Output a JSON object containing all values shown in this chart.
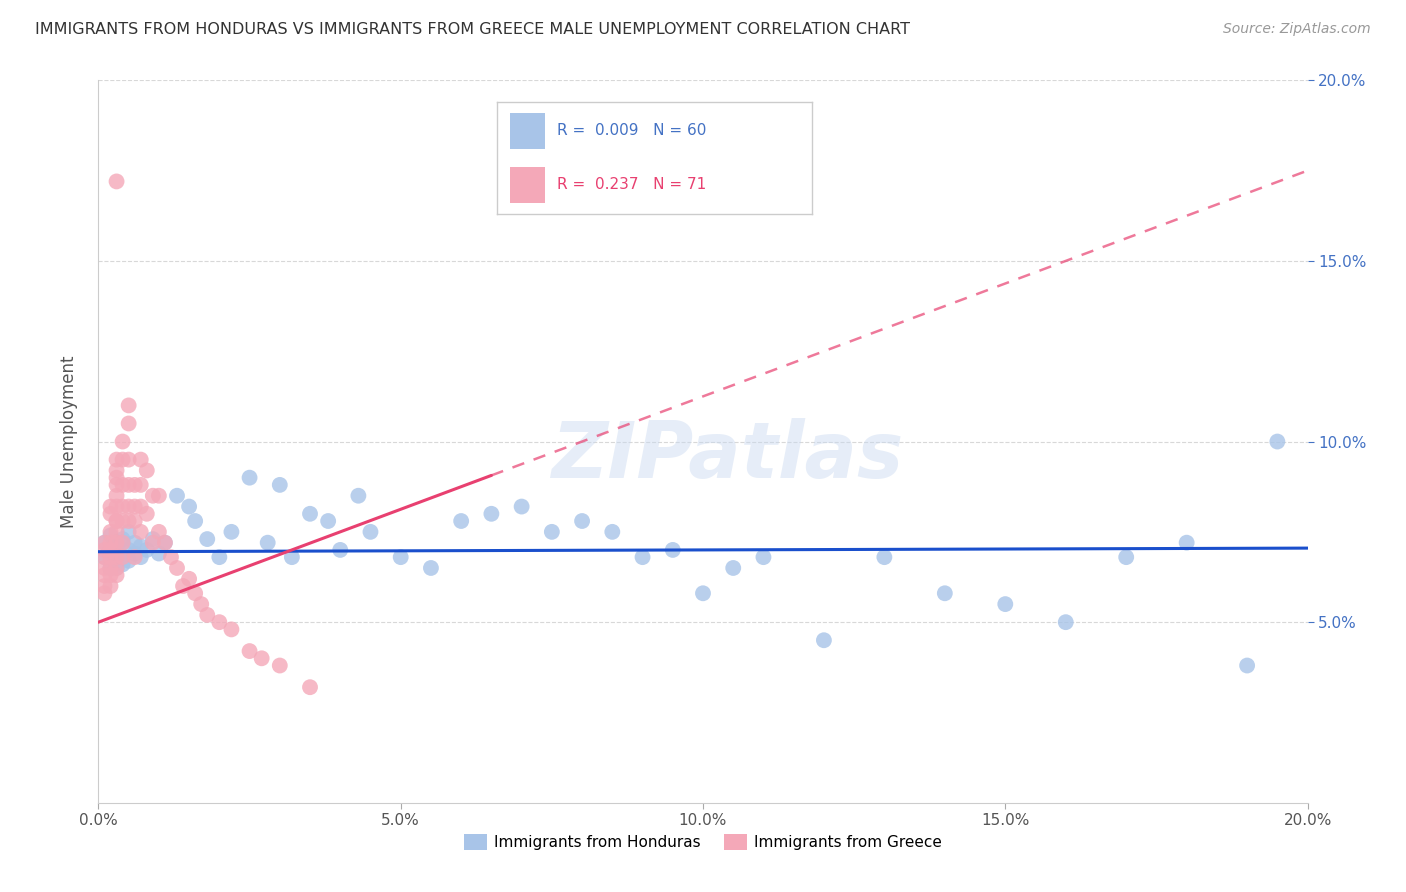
{
  "title": "IMMIGRANTS FROM HONDURAS VS IMMIGRANTS FROM GREECE MALE UNEMPLOYMENT CORRELATION CHART",
  "source": "Source: ZipAtlas.com",
  "ylabel": "Male Unemployment",
  "xlim": [
    0,
    0.2
  ],
  "ylim": [
    0,
    0.2
  ],
  "xticks": [
    0.0,
    0.05,
    0.1,
    0.15,
    0.2
  ],
  "yticks": [
    0.05,
    0.1,
    0.15,
    0.2
  ],
  "xtick_labels": [
    "0.0%",
    "5.0%",
    "10.0%",
    "15.0%",
    "20.0%"
  ],
  "ytick_labels_right": [
    "5.0%",
    "10.0%",
    "15.0%",
    "20.0%"
  ],
  "legend_label1": "Immigrants from Honduras",
  "legend_label2": "Immigrants from Greece",
  "R1": 0.009,
  "N1": 60,
  "R2": 0.237,
  "N2": 71,
  "color_honduras": "#a8c4e8",
  "color_greece": "#f4a8b8",
  "line_color_honduras": "#1a4fcc",
  "line_color_greece": "#e84070",
  "background_color": "#ffffff",
  "watermark": "ZIPatlas",
  "honduras_x": [
    0.001,
    0.001,
    0.002,
    0.002,
    0.002,
    0.003,
    0.003,
    0.003,
    0.003,
    0.004,
    0.004,
    0.004,
    0.005,
    0.005,
    0.005,
    0.006,
    0.006,
    0.007,
    0.007,
    0.008,
    0.009,
    0.01,
    0.011,
    0.013,
    0.015,
    0.016,
    0.018,
    0.02,
    0.022,
    0.025,
    0.028,
    0.03,
    0.032,
    0.035,
    0.038,
    0.04,
    0.043,
    0.045,
    0.05,
    0.055,
    0.06,
    0.065,
    0.07,
    0.075,
    0.08,
    0.085,
    0.09,
    0.095,
    0.1,
    0.105,
    0.11,
    0.12,
    0.13,
    0.14,
    0.15,
    0.16,
    0.17,
    0.18,
    0.19,
    0.195
  ],
  "honduras_y": [
    0.068,
    0.072,
    0.07,
    0.065,
    0.074,
    0.068,
    0.071,
    0.065,
    0.069,
    0.072,
    0.066,
    0.073,
    0.07,
    0.067,
    0.075,
    0.069,
    0.072,
    0.071,
    0.068,
    0.07,
    0.073,
    0.069,
    0.072,
    0.085,
    0.082,
    0.078,
    0.073,
    0.068,
    0.075,
    0.09,
    0.072,
    0.088,
    0.068,
    0.08,
    0.078,
    0.07,
    0.085,
    0.075,
    0.068,
    0.065,
    0.078,
    0.08,
    0.082,
    0.075,
    0.078,
    0.075,
    0.068,
    0.07,
    0.058,
    0.065,
    0.068,
    0.045,
    0.068,
    0.058,
    0.055,
    0.05,
    0.068,
    0.072,
    0.038,
    0.1
  ],
  "greece_x": [
    0.001,
    0.001,
    0.001,
    0.001,
    0.001,
    0.001,
    0.001,
    0.002,
    0.002,
    0.002,
    0.002,
    0.002,
    0.002,
    0.002,
    0.002,
    0.002,
    0.003,
    0.003,
    0.003,
    0.003,
    0.003,
    0.003,
    0.003,
    0.003,
    0.003,
    0.003,
    0.003,
    0.003,
    0.003,
    0.004,
    0.004,
    0.004,
    0.004,
    0.004,
    0.004,
    0.004,
    0.005,
    0.005,
    0.005,
    0.005,
    0.005,
    0.005,
    0.006,
    0.006,
    0.006,
    0.006,
    0.007,
    0.007,
    0.007,
    0.007,
    0.008,
    0.008,
    0.009,
    0.009,
    0.01,
    0.01,
    0.011,
    0.012,
    0.013,
    0.014,
    0.015,
    0.016,
    0.017,
    0.018,
    0.02,
    0.022,
    0.025,
    0.027,
    0.03,
    0.035,
    0.003
  ],
  "greece_y": [
    0.065,
    0.068,
    0.07,
    0.063,
    0.06,
    0.072,
    0.058,
    0.075,
    0.068,
    0.072,
    0.065,
    0.08,
    0.082,
    0.07,
    0.063,
    0.06,
    0.09,
    0.085,
    0.078,
    0.092,
    0.088,
    0.082,
    0.078,
    0.095,
    0.075,
    0.072,
    0.068,
    0.065,
    0.063,
    0.1,
    0.095,
    0.088,
    0.082,
    0.078,
    0.072,
    0.068,
    0.11,
    0.105,
    0.095,
    0.088,
    0.082,
    0.078,
    0.088,
    0.082,
    0.078,
    0.068,
    0.095,
    0.088,
    0.082,
    0.075,
    0.092,
    0.08,
    0.085,
    0.072,
    0.085,
    0.075,
    0.072,
    0.068,
    0.065,
    0.06,
    0.062,
    0.058,
    0.055,
    0.052,
    0.05,
    0.048,
    0.042,
    0.04,
    0.038,
    0.032,
    0.172
  ],
  "trend_hond_x0": 0.0,
  "trend_hond_x1": 0.2,
  "trend_hond_y0": 0.0695,
  "trend_hond_y1": 0.0705,
  "trend_greece_solid_x0": 0.0,
  "trend_greece_solid_x1": 0.065,
  "trend_greece_dashed_x0": 0.065,
  "trend_greece_dashed_x1": 0.2,
  "trend_greece_y0": 0.05,
  "trend_greece_y1": 0.175
}
